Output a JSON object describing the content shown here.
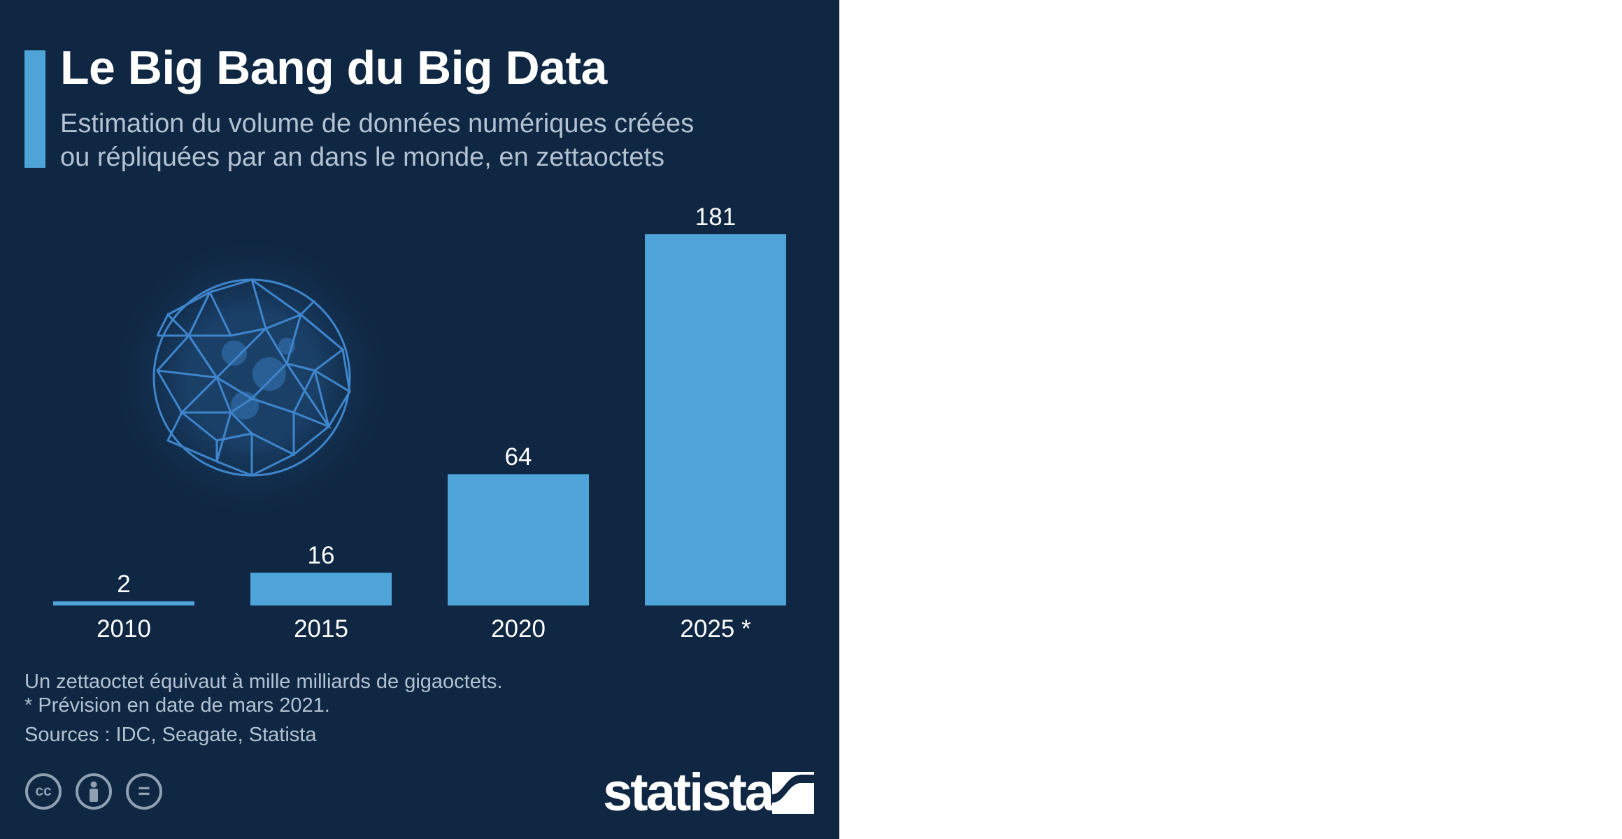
{
  "header": {
    "title": "Le Big Bang du Big Data",
    "subtitle_line1": "Estimation du volume de données numériques créées",
    "subtitle_line2": "ou répliquées par an dans le monde, en zettaoctets"
  },
  "chart_data": {
    "type": "bar",
    "categories": [
      "2010",
      "2015",
      "2020",
      "2025 *"
    ],
    "values": [
      2,
      16,
      64,
      181
    ],
    "title": "Le Big Bang du Big Data",
    "subtitle": "Estimation du volume de données numériques créées ou répliquées par an dans le monde, en zettaoctets",
    "xlabel": "",
    "ylabel": "",
    "ylim": [
      0,
      181
    ],
    "grid": false,
    "bar_color": "#4ea3d8"
  },
  "footer": {
    "note_1": "Un zettaoctet équivaut à mille milliards de gigaoctets.",
    "note_2": "* Prévision en date de mars 2021.",
    "sources": "Sources : IDC, Seagate, Statista",
    "brand": "statista",
    "license_icons": [
      "cc-icon",
      "attribution-icon",
      "no-derivatives-icon"
    ]
  },
  "colors": {
    "background": "#0f2742",
    "accent": "#4ea3d8",
    "text_primary": "#ffffff",
    "text_secondary": "#b3c2d3",
    "globe": "#3f85cc"
  }
}
